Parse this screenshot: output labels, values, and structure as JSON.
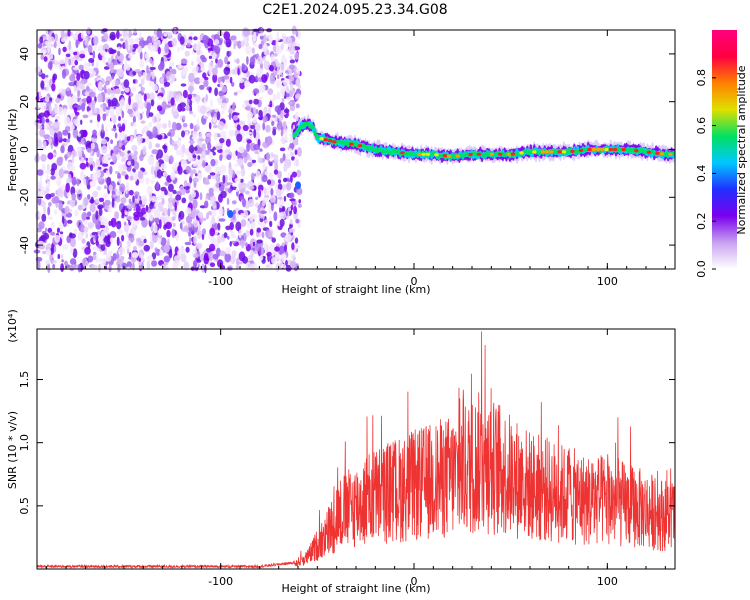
{
  "title": "C2E1.2024.095.23.34.G08",
  "chart_data": [
    {
      "type": "heatmap",
      "xlabel": "Height of straight line (km)",
      "ylabel": "Frequency (Hz)",
      "xlim": [
        -195,
        135
      ],
      "ylim": [
        -50,
        50
      ],
      "x_ticks": [
        -100,
        0,
        100
      ],
      "y_ticks": [
        -40,
        -20,
        0,
        20,
        40
      ],
      "x_tick_labels": [
        "-100",
        "0",
        "100"
      ],
      "y_tick_labels": [
        "-40",
        "-20",
        "0",
        "20",
        "40"
      ],
      "noise_region_x": [
        -195,
        -62
      ],
      "signal_track": {
        "x": [
          -62,
          -58,
          -55,
          -52,
          -50,
          -45,
          -40,
          -30,
          -20,
          -10,
          0,
          10,
          20,
          30,
          40,
          50,
          60,
          70,
          80,
          90,
          100,
          110,
          120,
          130,
          135
        ],
        "y": [
          6,
          10,
          11,
          9,
          5,
          4,
          3,
          2,
          0,
          -1,
          -2,
          -2,
          -3,
          -2,
          -2,
          -2,
          -1,
          -1,
          -1,
          0,
          0,
          0,
          -1,
          -2,
          -2
        ]
      },
      "colorbar": {
        "label": "Normalized spectral amplitude",
        "range": [
          0,
          1
        ],
        "ticks": [
          0.0,
          0.2,
          0.4,
          0.6,
          0.8
        ],
        "tick_labels": [
          "0.0",
          "0.2",
          "0.4",
          "0.6",
          "0.8"
        ],
        "colors": [
          "#ffffff",
          "#c8a2f0",
          "#7a00ee",
          "#2030ff",
          "#00c8ff",
          "#00e060",
          "#e0e000",
          "#ff8000",
          "#ff0040",
          "#ff0080"
        ]
      },
      "grid": false
    },
    {
      "type": "line",
      "xlabel": "Height of straight line (km)",
      "ylabel": "SNR (10 * v/v)",
      "y_multiplier_label": "(x10⁴)",
      "xlim": [
        -195,
        135
      ],
      "ylim": [
        0,
        1.9
      ],
      "x_ticks": [
        -100,
        0,
        100
      ],
      "y_ticks": [
        0.5,
        1.0,
        1.5
      ],
      "x_tick_labels": [
        "-100",
        "0",
        "100"
      ],
      "y_tick_labels": [
        "0.5",
        "1.0",
        "1.5"
      ],
      "series": [
        {
          "color": "#ee3333",
          "envelope": {
            "x": [
              -195,
              -120,
              -80,
              -62,
              -55,
              -48,
              -42,
              -40,
              -35,
              -30,
              -20,
              -10,
              0,
              10,
              20,
              30,
              35,
              40,
              50,
              60,
              70,
              80,
              90,
              100,
              110,
              120,
              130,
              135
            ],
            "y": [
              0.02,
              0.02,
              0.02,
              0.05,
              0.12,
              0.3,
              0.45,
              0.55,
              0.6,
              0.65,
              0.75,
              0.8,
              0.85,
              0.9,
              0.95,
              1.05,
              1.1,
              1.05,
              0.95,
              0.85,
              0.8,
              0.75,
              0.7,
              0.7,
              0.65,
              0.6,
              0.55,
              0.55
            ]
          },
          "peak": {
            "x": 35,
            "y": 1.88
          }
        }
      ],
      "grid": false
    }
  ]
}
